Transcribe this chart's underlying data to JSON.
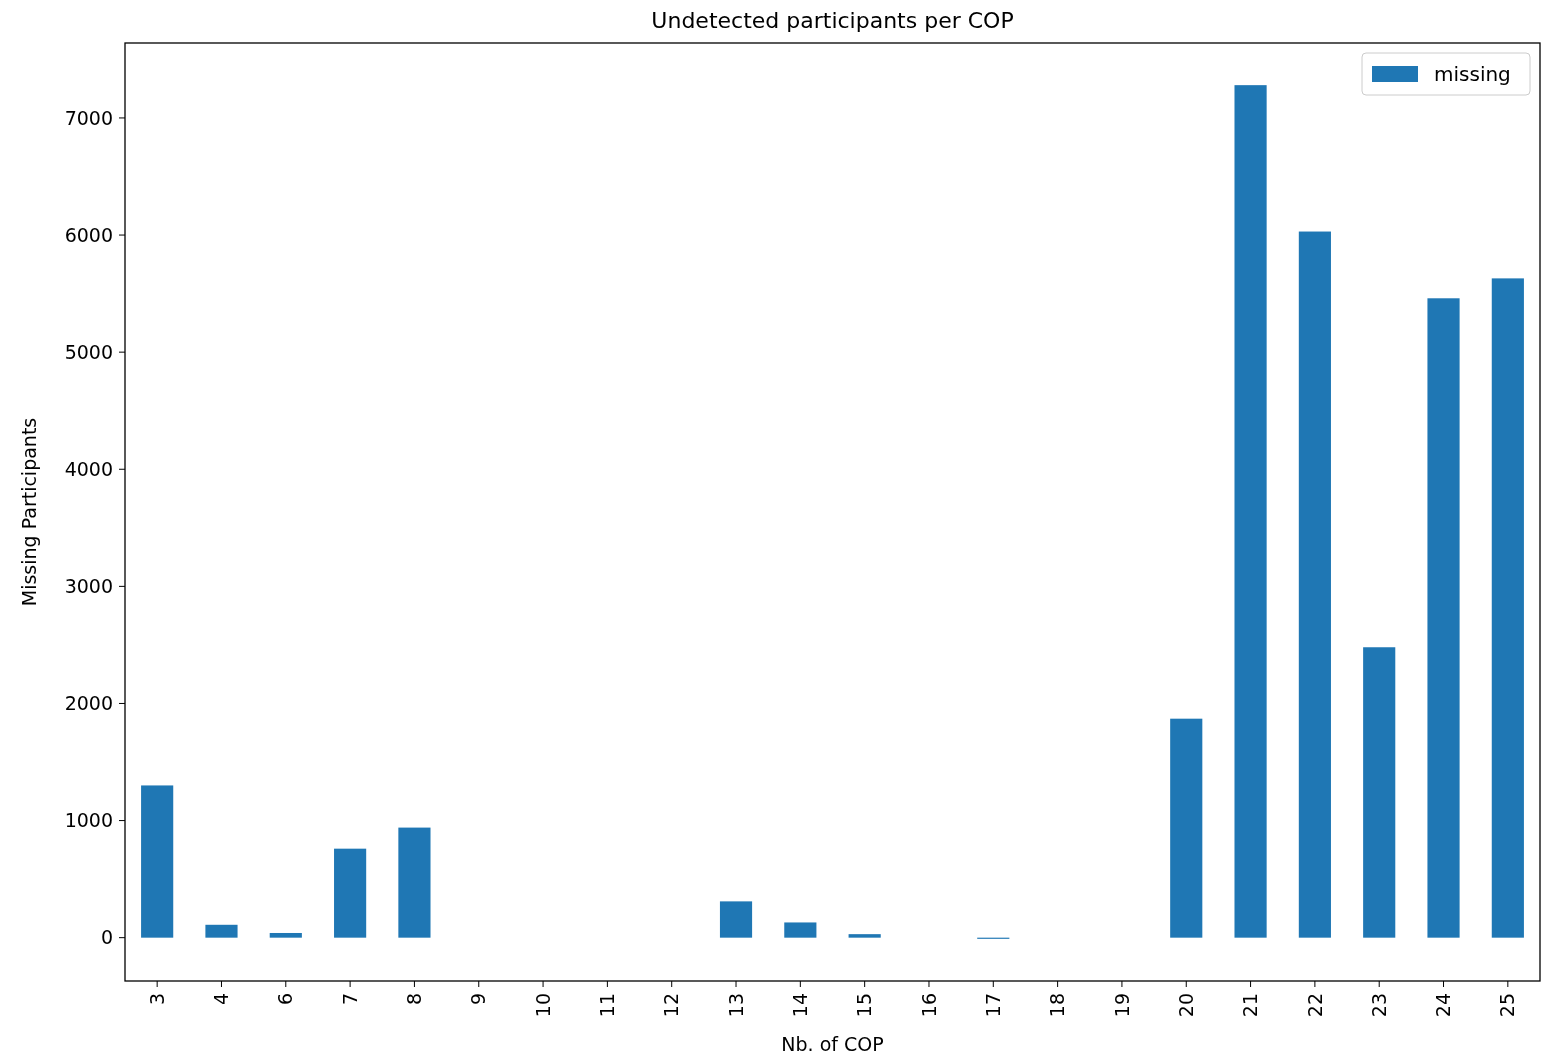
{
  "chart_data": {
    "type": "bar",
    "title": "Undetected participants per COP",
    "xlabel": "Nb. of COP",
    "ylabel": "Missing Participants",
    "categories": [
      "3",
      "4",
      "6",
      "7",
      "8",
      "9",
      "10",
      "11",
      "12",
      "13",
      "14",
      "15",
      "16",
      "17",
      "18",
      "19",
      "20",
      "21",
      "22",
      "23",
      "24",
      "25"
    ],
    "series": [
      {
        "name": "missing",
        "color": "#1f77b4",
        "values": [
          1300,
          110,
          40,
          760,
          940,
          0,
          0,
          0,
          0,
          310,
          130,
          30,
          0,
          -10,
          0,
          0,
          1870,
          7280,
          6030,
          2480,
          5460,
          5630
        ]
      }
    ],
    "ylim": [
      -370,
      7640
    ],
    "yticks": [
      0,
      1000,
      2000,
      3000,
      4000,
      5000,
      6000,
      7000
    ],
    "legend": "top right",
    "grid": false
  }
}
